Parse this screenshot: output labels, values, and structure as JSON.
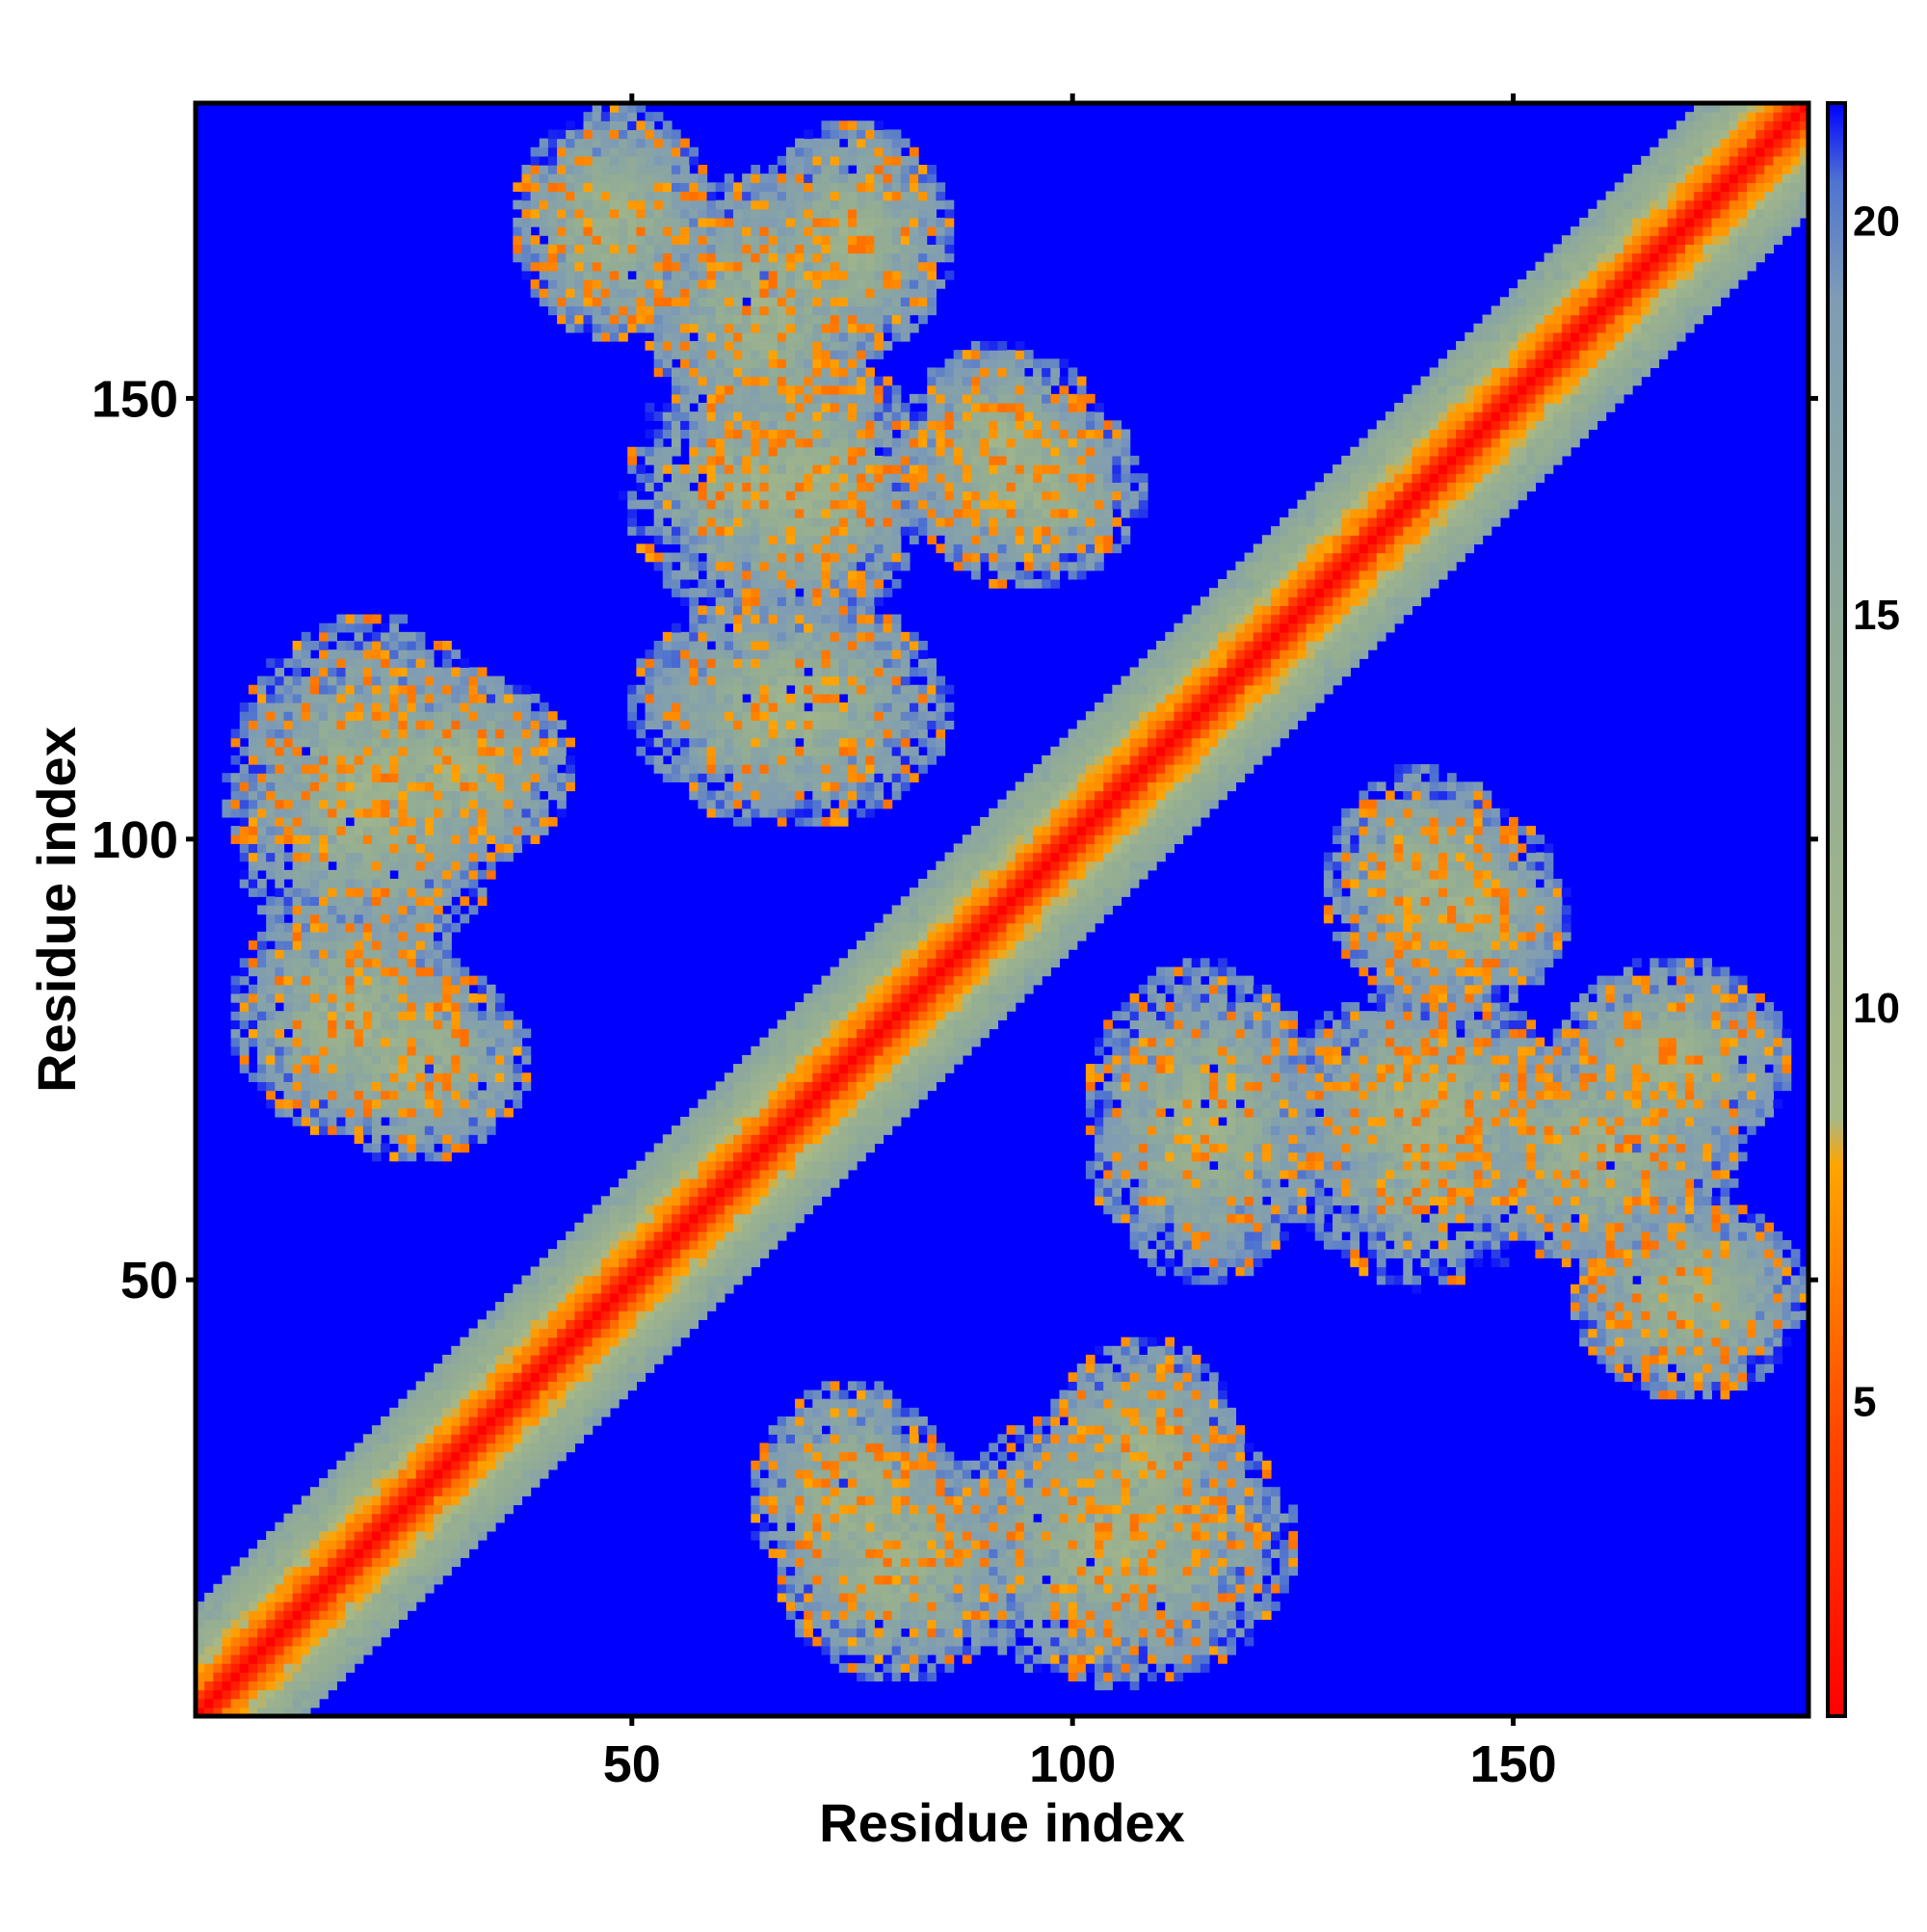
{
  "chart_data": {
    "type": "heatmap",
    "title": "",
    "xlabel": "Residue index",
    "ylabel": "Residue index",
    "n_residues": 183,
    "xlim": [
      1,
      183
    ],
    "ylim": [
      1,
      183
    ],
    "x_ticks": [
      50,
      100,
      150
    ],
    "y_ticks": [
      50,
      100,
      150
    ],
    "colorbar": {
      "ticks": [
        5,
        10,
        15,
        20
      ],
      "range": [
        1,
        21.5
      ],
      "stops": [
        {
          "value": 1,
          "color": "#ff0000"
        },
        {
          "value": 4.5,
          "color": "#ff4500"
        },
        {
          "value": 8,
          "color": "#ffa500"
        },
        {
          "value": 8.6,
          "color": "#a7b887"
        },
        {
          "value": 14,
          "color": "#93ad94"
        },
        {
          "value": 19,
          "color": "#7f9cb4"
        },
        {
          "value": 20.5,
          "color": "#4f74d0"
        },
        {
          "value": 21.5,
          "color": "#0000ff"
        }
      ]
    },
    "description_values": "Symmetric residue-residue distance map (Å-like units); red = close contacts near diagonal, blue = distant (≥21).",
    "contact_features": [
      {
        "kind": "diagonal",
        "width": 4
      },
      {
        "kind": "band",
        "from": [
          1,
          1
        ],
        "to": [
          183,
          183
        ],
        "halfwidth": 12,
        "value": 12
      },
      {
        "kind": "blob",
        "i": 20,
        "j": 105,
        "ri": 14,
        "rj": 18,
        "value": 11
      },
      {
        "kind": "blob",
        "i": 18,
        "j": 80,
        "ri": 12,
        "rj": 12,
        "value": 11
      },
      {
        "kind": "blob",
        "i": 48,
        "j": 170,
        "ri": 10,
        "rj": 12,
        "value": 11
      },
      {
        "kind": "blob",
        "i": 65,
        "j": 160,
        "ri": 12,
        "rj": 14,
        "value": 11
      },
      {
        "kind": "blob",
        "i": 65,
        "j": 140,
        "ri": 14,
        "rj": 14,
        "value": 11
      },
      {
        "kind": "blob",
        "i": 92,
        "j": 145,
        "ri": 10,
        "rj": 10,
        "value": 11
      },
      {
        "kind": "blob",
        "i": 75,
        "j": 25,
        "ri": 10,
        "rj": 12,
        "value": 11
      },
      {
        "kind": "blob",
        "i": 108,
        "j": 30,
        "ri": 10,
        "rj": 12,
        "value": 11
      },
      {
        "kind": "blob",
        "i": 140,
        "j": 70,
        "ri": 14,
        "rj": 12,
        "value": 11
      },
      {
        "kind": "blob",
        "i": 168,
        "j": 75,
        "ri": 12,
        "rj": 10,
        "value": 11
      },
      {
        "kind": "blob",
        "i": 115,
        "j": 68,
        "ri": 12,
        "rj": 16,
        "value": 11
      },
      {
        "kind": "blob",
        "i": 140,
        "j": 95,
        "ri": 10,
        "rj": 12,
        "value": 11
      },
      {
        "kind": "blob",
        "i": 68,
        "j": 115,
        "ri": 16,
        "rj": 12,
        "value": 11
      },
      {
        "kind": "blob",
        "i": 95,
        "j": 140,
        "ri": 12,
        "rj": 10,
        "value": 11
      },
      {
        "kind": "blob",
        "i": 75,
        "j": 168,
        "ri": 10,
        "rj": 12,
        "value": 11
      },
      {
        "kind": "blob",
        "i": 70,
        "j": 140,
        "ri": 12,
        "rj": 14,
        "value": 11
      },
      {
        "kind": "blob",
        "i": 30,
        "j": 108,
        "ri": 12,
        "rj": 10,
        "value": 11
      },
      {
        "kind": "blob",
        "i": 25,
        "j": 75,
        "ri": 12,
        "rj": 10,
        "value": 11
      },
      {
        "kind": "blob",
        "i": 170,
        "j": 48,
        "ri": 12,
        "rj": 10,
        "value": 11
      },
      {
        "kind": "blob",
        "i": 160,
        "j": 65,
        "ri": 14,
        "rj": 12,
        "value": 11
      },
      {
        "kind": "blob",
        "i": 105,
        "j": 20,
        "ri": 18,
        "rj": 14,
        "value": 11
      },
      {
        "kind": "blob",
        "i": 80,
        "j": 18,
        "ri": 12,
        "rj": 12,
        "value": 11
      },
      {
        "kind": "blob",
        "i": 145,
        "j": 92,
        "ri": 10,
        "rj": 10,
        "value": 11
      }
    ]
  }
}
